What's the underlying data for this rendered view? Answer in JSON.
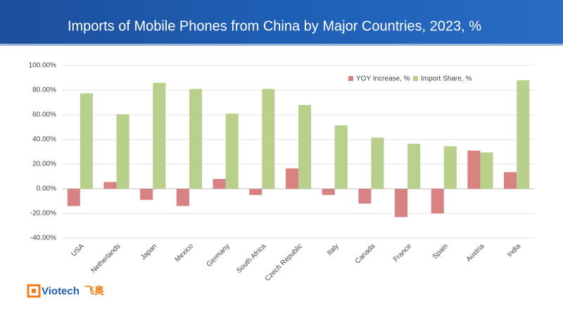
{
  "chart_data": {
    "type": "bar",
    "title": "Imports of Mobile Phones from China by Major Countries, 2023, %",
    "categories": [
      "USA",
      "Netherlands",
      "Japan",
      "Mexico",
      "Germany",
      "South Africa",
      "Czech Republic",
      "Italy",
      "Canada",
      "France",
      "Spain",
      "Austria",
      "India"
    ],
    "series": [
      {
        "name": "YOY Increase, %",
        "color": "#d98284",
        "values": [
          -14,
          5.5,
          -9,
          -14,
          8,
          -5,
          16.5,
          -5,
          -12,
          -23,
          -20,
          31,
          13.5
        ]
      },
      {
        "name": "Import Share, %",
        "color": "#b9d08d",
        "values": [
          77.5,
          60.5,
          86,
          81,
          61,
          81,
          68,
          51.5,
          41.5,
          36.5,
          34.5,
          29.5,
          88
        ]
      }
    ],
    "ylim": [
      -40,
      100
    ],
    "yticks": [
      {
        "value": -40,
        "label": "-40.00%"
      },
      {
        "value": -20,
        "label": "-20.00%"
      },
      {
        "value": 0,
        "label": "0.00%"
      },
      {
        "value": 20,
        "label": "20.00%"
      },
      {
        "value": 40,
        "label": "40.00%"
      },
      {
        "value": 60,
        "label": "60.00%"
      },
      {
        "value": 80,
        "label": "80.00%"
      },
      {
        "value": 100,
        "label": "100.00%"
      }
    ],
    "grid": true
  },
  "brand": {
    "name": "Viotech",
    "chinese": "飞奥"
  }
}
